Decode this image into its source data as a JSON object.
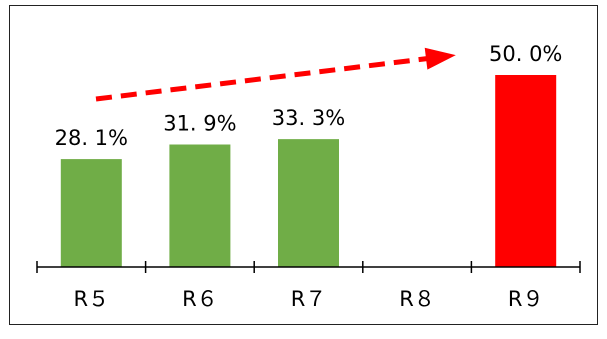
{
  "chart_data": {
    "type": "bar",
    "categories": [
      "R５",
      "R６",
      "R７",
      "R８",
      "R９"
    ],
    "values": [
      28.1,
      31.9,
      33.3,
      null,
      50.0
    ],
    "data_labels": [
      "28. 1%",
      "31. 9%",
      "33. 3%",
      "",
      "50. 0%"
    ],
    "ylim": [
      0,
      100
    ],
    "grid": false,
    "legend": "none",
    "annotation": "red dashed trend arrow from R５ toward R９",
    "colors": {
      "bar_default": "#70AD47",
      "bar_highlight": "#FF0000",
      "label_default": "#000000",
      "label_highlight": "#FF0000",
      "arrow": "#FF0000",
      "axis": "#000000"
    },
    "highlight_index": 4
  }
}
